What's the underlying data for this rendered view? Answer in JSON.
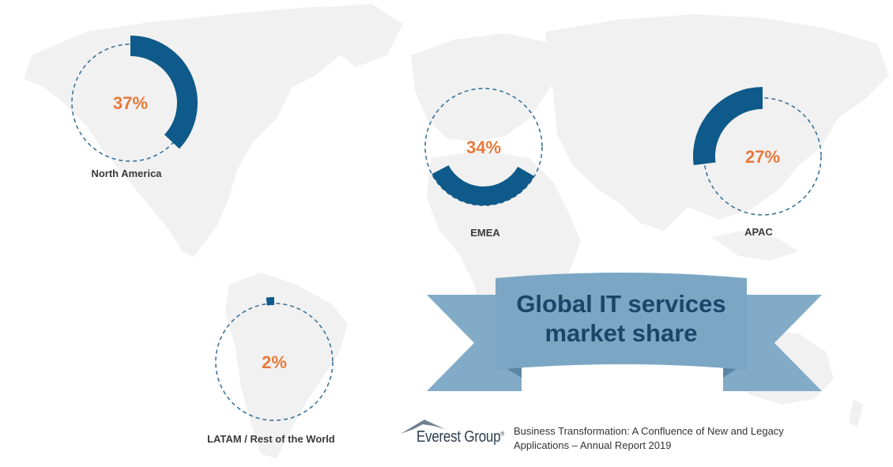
{
  "colors": {
    "ring": "#0e5a8a",
    "dash": "#2f6b92",
    "percent": "#e8793a",
    "map": "#f1f1f1",
    "banner": "#7ba7c4",
    "banner_text": "#1a4668"
  },
  "chart_data": [
    {
      "type": "pie",
      "region": "North America",
      "value": 37,
      "label": "37%"
    },
    {
      "type": "pie",
      "region": "EMEA",
      "value": 34,
      "label": "34%"
    },
    {
      "type": "pie",
      "region": "APAC",
      "value": 27,
      "label": "27%"
    },
    {
      "type": "pie",
      "region": "LATAM / Rest of the World",
      "value": 2,
      "label": "2%"
    }
  ],
  "banner": {
    "line1": "Global IT services",
    "line2": "market share"
  },
  "logo": {
    "name": "Everest Group",
    "mark": "®"
  },
  "source": {
    "line1": "Business Transformation: A Confluence of New and Legacy",
    "line2": "Applications – Annual Report 2019"
  }
}
